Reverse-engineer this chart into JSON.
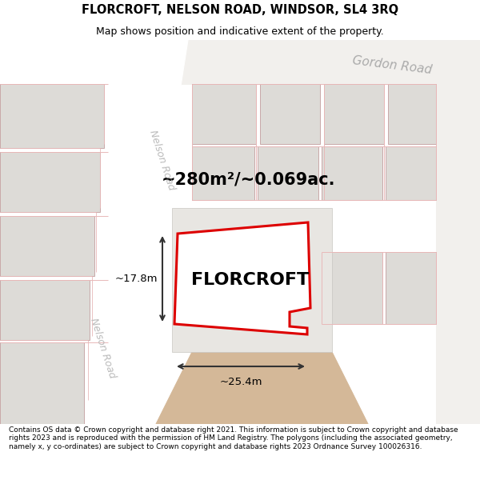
{
  "title": "FLORCROFT, NELSON ROAD, WINDSOR, SL4 3RQ",
  "subtitle": "Map shows position and indicative extent of the property.",
  "footer": "Contains OS data © Crown copyright and database right 2021. This information is subject to Crown copyright and database rights 2023 and is reproduced with the permission of HM Land Registry. The polygons (including the associated geometry, namely x, y co-ordinates) are subject to Crown copyright and database rights 2023 Ordnance Survey 100026316.",
  "property_label": "FLORCROFT",
  "area_label": "~280m²/~0.069ac.",
  "width_label": "~25.4m",
  "height_label": "~17.8m",
  "gordon_road_label": "Gordon Road",
  "nelson_road_label1": "Nelson Road",
  "nelson_road_label2": "Nelson Road",
  "map_bg": "#f2f0ed",
  "building_fill": "#dddbd7",
  "building_edge": "#c8a8a8",
  "road_outline_color": "#e8b8b8",
  "property_outline": "#dd0000",
  "property_fill": "#ffffff",
  "dim_color": "#333333",
  "gordon_road_color": "#aaaaaa",
  "nelson_road_color": "#bbbbbb",
  "tan_fill": "#d4b898",
  "white_bg": "#ffffff",
  "title_fontsize": 10.5,
  "subtitle_fontsize": 9.0,
  "footer_fontsize": 6.5
}
